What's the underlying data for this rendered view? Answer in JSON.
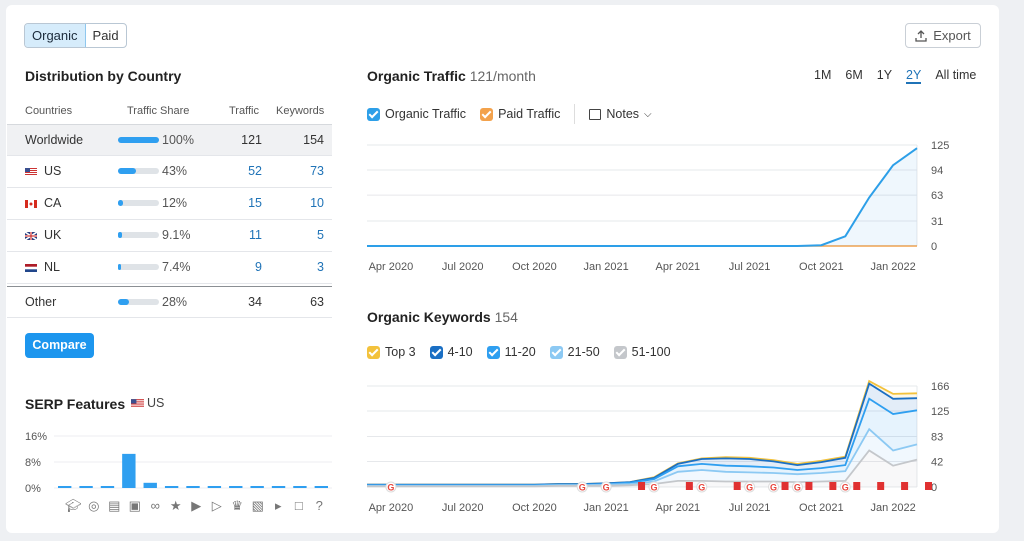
{
  "toggle": {
    "organic": "Organic",
    "paid": "Paid"
  },
  "export_label": "Export",
  "distribution": {
    "title": "Distribution by Country",
    "headers": {
      "countries": "Countries",
      "share": "Traffic Share",
      "traffic": "Traffic",
      "keywords": "Keywords"
    },
    "rows": [
      {
        "name": "Worldwide",
        "share": "100%",
        "share_pct": 100,
        "traffic": "121",
        "keywords": "154"
      },
      {
        "name": "US",
        "share": "43%",
        "share_pct": 43,
        "traffic": "52",
        "keywords": "73",
        "flag": "us"
      },
      {
        "name": "CA",
        "share": "12%",
        "share_pct": 12,
        "traffic": "15",
        "keywords": "10",
        "flag": "ca"
      },
      {
        "name": "UK",
        "share": "9.1%",
        "share_pct": 9.1,
        "traffic": "11",
        "keywords": "5",
        "flag": "uk"
      },
      {
        "name": "NL",
        "share": "7.4%",
        "share_pct": 7.4,
        "traffic": "9",
        "keywords": "3",
        "flag": "nl"
      },
      {
        "name": "Other",
        "share": "28%",
        "share_pct": 28,
        "traffic": "34",
        "keywords": "63"
      }
    ],
    "compare_label": "Compare"
  },
  "serp": {
    "title": "SERP Features",
    "country": "US"
  },
  "traffic_panel": {
    "title": "Organic Traffic",
    "subtitle": "121/month",
    "ranges": [
      "1M",
      "6M",
      "1Y",
      "2Y",
      "All time"
    ],
    "active_range": "2Y",
    "legend": {
      "organic": "Organic Traffic",
      "paid": "Paid Traffic",
      "notes": "Notes"
    }
  },
  "keywords_panel": {
    "title": "Organic Keywords",
    "subtitle": "154",
    "legend": [
      "Top 3",
      "4-10",
      "11-20",
      "21-50",
      "51-100"
    ]
  },
  "colors": {
    "accent": "#1d96ee",
    "organic": "#2d9fe8",
    "paid": "#f3a24c",
    "top3": "#f3c23c",
    "k4_10": "#1a6fc4",
    "k11_20": "#2f9ff0",
    "k21_50": "#8cc9f3",
    "k51_100": "#c4c7cb"
  },
  "chart_data": [
    {
      "type": "line",
      "title": "Organic Traffic",
      "x_labels": [
        "Apr 2020",
        "Jul 2020",
        "Oct 2020",
        "Jan 2021",
        "Apr 2021",
        "Jul 2021",
        "Oct 2021",
        "Jan 2022"
      ],
      "x": [
        "2020-03",
        "2020-04",
        "2020-05",
        "2020-06",
        "2020-07",
        "2020-08",
        "2020-09",
        "2020-10",
        "2020-11",
        "2020-12",
        "2021-01",
        "2021-02",
        "2021-03",
        "2021-04",
        "2021-05",
        "2021-06",
        "2021-07",
        "2021-08",
        "2021-09",
        "2021-10",
        "2021-11",
        "2021-12",
        "2022-01",
        "2022-02"
      ],
      "yticks": [
        0,
        31,
        63,
        94,
        125
      ],
      "ylim": [
        0,
        125
      ],
      "series": [
        {
          "name": "Organic Traffic",
          "values": [
            0,
            0,
            0,
            0,
            0,
            0,
            0,
            0,
            0,
            0,
            0,
            0,
            0,
            0,
            0,
            0,
            0,
            0,
            0,
            1,
            12,
            60,
            100,
            121
          ]
        },
        {
          "name": "Paid Traffic",
          "values": [
            0,
            0,
            0,
            0,
            0,
            0,
            0,
            0,
            0,
            0,
            0,
            0,
            0,
            0,
            0,
            0,
            0,
            0,
            0,
            0,
            0,
            0,
            0,
            0
          ]
        }
      ]
    },
    {
      "type": "area",
      "title": "Organic Keywords",
      "x_labels": [
        "Apr 2020",
        "Jul 2020",
        "Oct 2020",
        "Jan 2021",
        "Apr 2021",
        "Jul 2021",
        "Oct 2021",
        "Jan 2022"
      ],
      "x": [
        "2020-03",
        "2020-04",
        "2020-05",
        "2020-06",
        "2020-07",
        "2020-08",
        "2020-09",
        "2020-10",
        "2020-11",
        "2020-12",
        "2021-01",
        "2021-02",
        "2021-03",
        "2021-04",
        "2021-05",
        "2021-06",
        "2021-07",
        "2021-08",
        "2021-09",
        "2021-10",
        "2021-11",
        "2021-12",
        "2022-01",
        "2022-02"
      ],
      "yticks": [
        0,
        42,
        83,
        125,
        166
      ],
      "ylim": [
        0,
        166
      ],
      "series": [
        {
          "name": "Top 3",
          "values": [
            0,
            0,
            0,
            0,
            0,
            0,
            0,
            0,
            0,
            0,
            0,
            0,
            1,
            1,
            1,
            2,
            2,
            2,
            2,
            2,
            2,
            4,
            8,
            8
          ]
        },
        {
          "name": "4-10",
          "values": [
            1,
            1,
            1,
            1,
            1,
            1,
            1,
            1,
            1,
            1,
            1,
            1,
            2,
            4,
            8,
            12,
            12,
            10,
            8,
            10,
            12,
            25,
            25,
            20
          ]
        },
        {
          "name": "11-20",
          "values": [
            1,
            1,
            1,
            1,
            1,
            1,
            1,
            1,
            1,
            1,
            1,
            2,
            4,
            9,
            10,
            10,
            10,
            9,
            7,
            8,
            10,
            50,
            60,
            56
          ]
        },
        {
          "name": "21-50",
          "values": [
            1,
            1,
            1,
            1,
            1,
            1,
            1,
            1,
            1,
            1,
            2,
            2,
            4,
            15,
            18,
            16,
            15,
            14,
            13,
            14,
            16,
            35,
            25,
            25
          ]
        },
        {
          "name": "51-100",
          "values": [
            1,
            1,
            1,
            1,
            1,
            1,
            1,
            1,
            2,
            2,
            2,
            3,
            5,
            10,
            10,
            9,
            9,
            9,
            8,
            9,
            10,
            60,
            35,
            45
          ]
        }
      ]
    },
    {
      "type": "bar",
      "title": "SERP Features",
      "categories": [
        "graduation-cap",
        "pin",
        "doc",
        "image",
        "link",
        "star",
        "video",
        "video-carousel",
        "crown",
        "images",
        "play",
        "comment",
        "question"
      ],
      "values": [
        0.1,
        0.1,
        0.1,
        10.5,
        1.6,
        0.1,
        0.1,
        0.1,
        0.1,
        0.1,
        0.1,
        0.1,
        0.1
      ],
      "yticks": [
        "0%",
        "8%",
        "16%"
      ],
      "ylim": [
        0,
        16
      ]
    }
  ]
}
